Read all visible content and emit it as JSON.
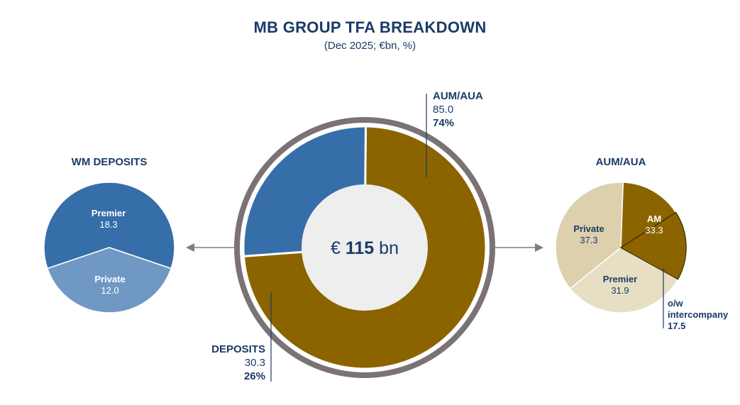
{
  "title": "MB GROUP TFA BREAKDOWN",
  "subtitle": "(Dec 2025; €bn, %)",
  "colors": {
    "text": "#1b3a68",
    "gold": "#8b6400",
    "blue": "#356ea8",
    "light_blue": "#7098c4",
    "ring": "#7b7275",
    "center": "#eeeeee",
    "beige": "#dcd0ad",
    "light_beige": "#e7dfc3",
    "arrow": "#7f7f7f"
  },
  "chart_data": [
    {
      "id": "tfa",
      "type": "pie",
      "style": "donut",
      "center_label": {
        "prefix": "€ ",
        "value": "115",
        "suffix": " bn"
      },
      "slices": [
        {
          "key": "aum",
          "label": "AUM/AUA",
          "value": 85.0,
          "percent": "74%",
          "value_label": "85.0",
          "color": "#8b6400"
        },
        {
          "key": "deposits",
          "label": "DEPOSITS",
          "value": 30.3,
          "percent": "26%",
          "value_label": "30.3",
          "color": "#356ea8"
        }
      ]
    },
    {
      "id": "wm_deposits",
      "type": "pie",
      "title": "WM DEPOSITS",
      "slices": [
        {
          "label": "Premier",
          "value": 18.3,
          "value_label": "18.3",
          "color": "#356ea8"
        },
        {
          "label": "Private",
          "value": 12.0,
          "value_label": "12.0",
          "color": "#7098c4"
        }
      ]
    },
    {
      "id": "aum_aua",
      "type": "pie",
      "title": "AUM/AUA",
      "slices": [
        {
          "label": "AM",
          "value": 33.3,
          "value_label": "33.3",
          "color": "#8b6400"
        },
        {
          "label": "Premier",
          "value": 31.9,
          "value_label": "31.9",
          "color": "#e7dfc3"
        },
        {
          "label": "Private",
          "value": 37.3,
          "value_label": "37.3",
          "color": "#dcd0ad"
        }
      ],
      "sub_slice": {
        "label": "o/w intercompany",
        "value": 17.5,
        "value_label": "17.5",
        "parent": "AM"
      }
    }
  ]
}
